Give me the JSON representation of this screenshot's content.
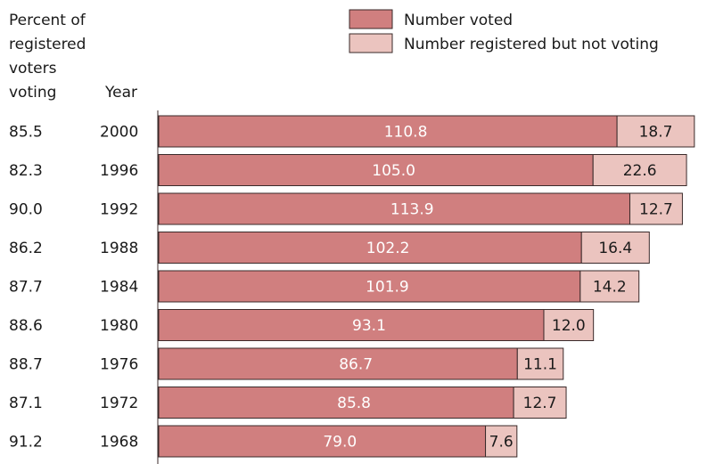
{
  "colors": {
    "voted": "#d07f7f",
    "not_voting": "#ebc4bf",
    "outline": "#3a2a2a"
  },
  "column_headers": {
    "percent_line1": "Percent of",
    "percent_line2": "registered",
    "percent_line3": "voters",
    "percent_line4": "voting",
    "year": "Year"
  },
  "chart_data": {
    "type": "bar",
    "orientation": "horizontal",
    "stacked": true,
    "categories": [
      "2000",
      "1996",
      "1992",
      "1988",
      "1984",
      "1980",
      "1976",
      "1972",
      "1968"
    ],
    "percent_voting": [
      "85.5",
      "82.3",
      "90.0",
      "86.2",
      "87.7",
      "88.6",
      "88.7",
      "87.1",
      "91.2"
    ],
    "series": [
      {
        "name": "Number voted",
        "values": [
          110.8,
          105.0,
          113.9,
          102.2,
          101.9,
          93.1,
          86.7,
          85.8,
          79.0
        ]
      },
      {
        "name": "Number registered but not voting",
        "values": [
          18.7,
          22.6,
          12.7,
          16.4,
          14.2,
          12.0,
          11.1,
          12.7,
          7.6
        ]
      }
    ],
    "value_labels": {
      "voted": [
        "110.8",
        "105.0",
        "113.9",
        "102.2",
        "101.9",
        "93.1",
        "86.7",
        "85.8",
        "79.0"
      ],
      "not_voting": [
        "18.7",
        "22.6",
        "12.7",
        "16.4",
        "14.2",
        "12.0",
        "11.1",
        "12.7",
        "7.6"
      ]
    },
    "legend_position": "top-right",
    "grid": false
  }
}
